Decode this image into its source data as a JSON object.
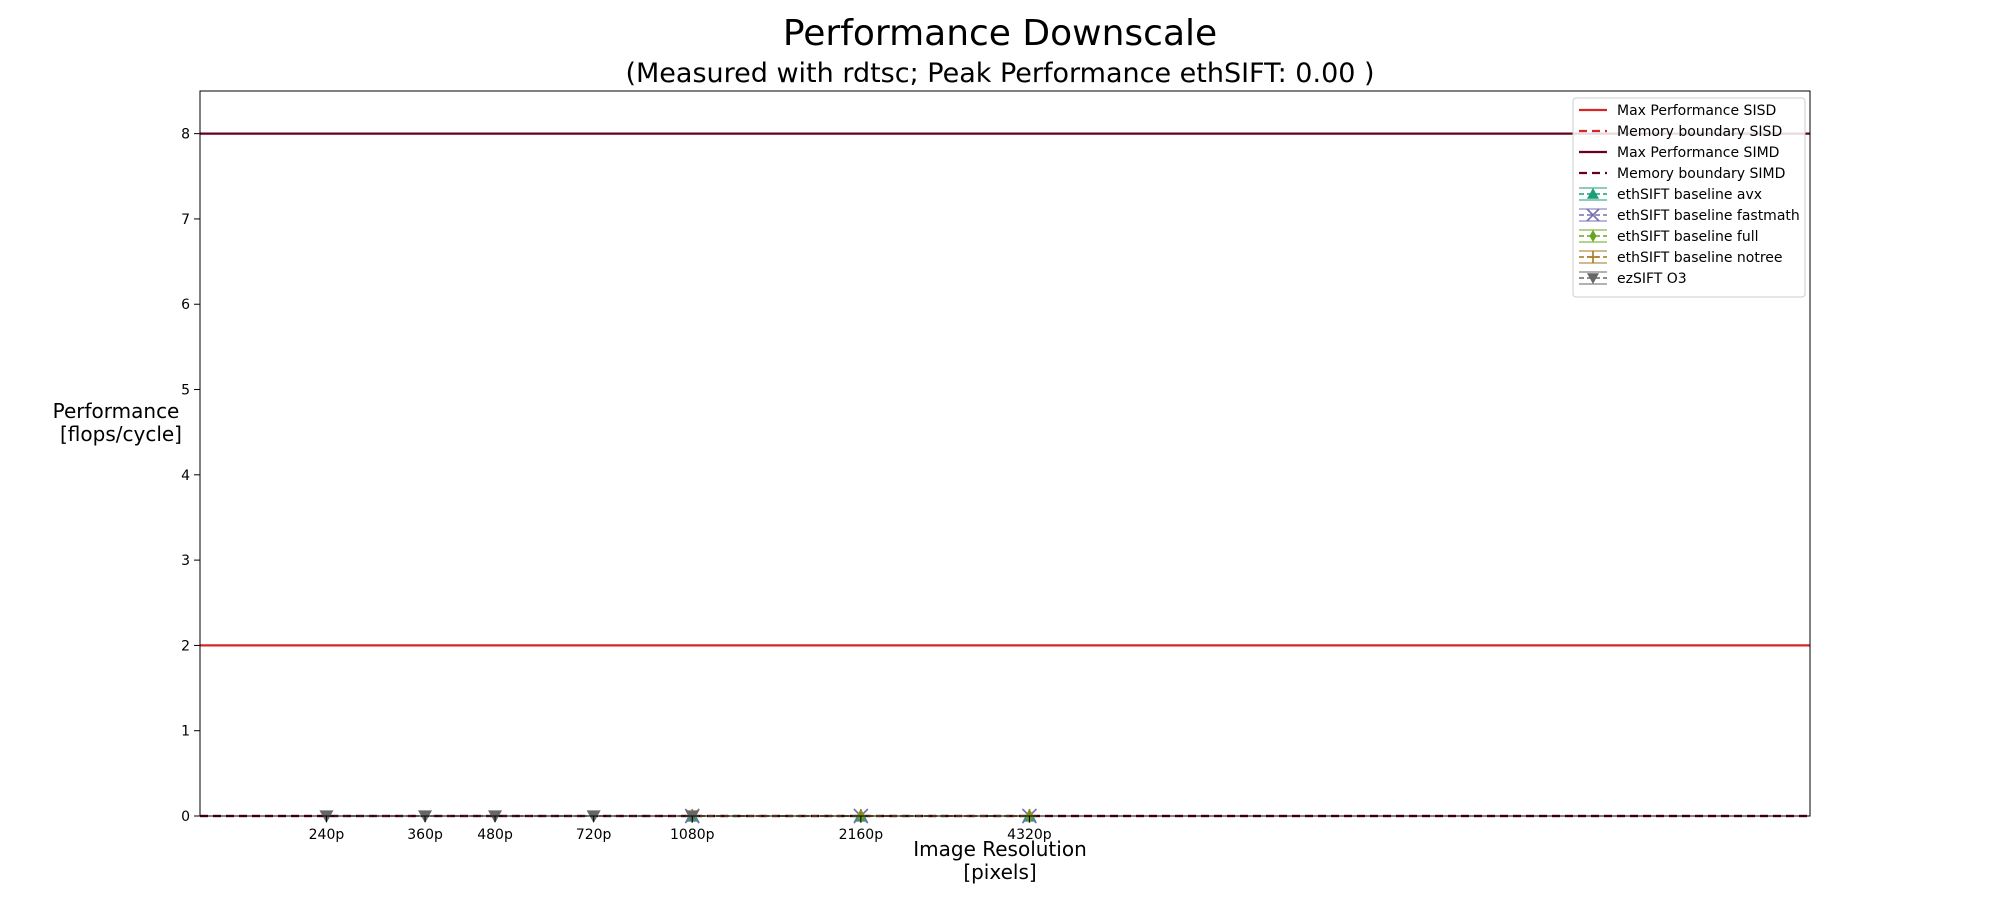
{
  "chart_data": {
    "type": "line",
    "title": "Performance Downscale",
    "subtitle": "(Measured with rdtsc; Peak Performance ethSIFT: 0.00 )",
    "xlabel": [
      "Image Resolution",
      "[pixels]"
    ],
    "ylabel": [
      "Performance",
      "[flops/cycle]"
    ],
    "x_categories": [
      "240p",
      "360p",
      "480p",
      "720p",
      "1080p",
      "2160p",
      "4320p"
    ],
    "x_values": [
      240,
      360,
      480,
      720,
      1080,
      2160,
      4320
    ],
    "xlim": [
      0.25,
      9.8
    ],
    "ylim": [
      0,
      8.5
    ],
    "y_ticks": [
      0,
      1,
      2,
      3,
      4,
      5,
      6,
      7,
      8
    ],
    "grid": false,
    "legend_position": "top-right",
    "hlines": [
      {
        "name": "Max Performance SISD",
        "y": 2,
        "color": "#d62728",
        "style": "solid"
      },
      {
        "name": "Memory boundary SISD",
        "y": 0,
        "color": "#d62728",
        "style": "dashed"
      },
      {
        "name": "Max Performance SIMD",
        "y": 8,
        "color": "#67001f",
        "style": "solid"
      },
      {
        "name": "Memory boundary SIMD",
        "y": 0,
        "color": "#67001f",
        "style": "dashed"
      }
    ],
    "series": [
      {
        "name": "ethSIFT baseline avx",
        "color": "#1b9e77",
        "marker": "triangle-up",
        "x": [
          "1080p",
          "2160p",
          "4320p"
        ],
        "y": [
          0.0,
          0.0,
          0.0
        ]
      },
      {
        "name": "ethSIFT baseline fastmath",
        "color": "#7570b3",
        "marker": "x",
        "x": [
          "1080p",
          "2160p",
          "4320p"
        ],
        "y": [
          0.0,
          0.0,
          0.0
        ]
      },
      {
        "name": "ethSIFT baseline full",
        "color": "#66a61e",
        "marker": "diamond",
        "x": [
          "1080p",
          "2160p",
          "4320p"
        ],
        "y": [
          0.0,
          0.0,
          0.0
        ]
      },
      {
        "name": "ethSIFT baseline notree",
        "color": "#a6761d",
        "marker": "plus",
        "x": [
          "1080p",
          "2160p",
          "4320p"
        ],
        "y": [
          0.0,
          0.0,
          0.0
        ]
      },
      {
        "name": "ezSIFT O3",
        "color": "#666666",
        "marker": "triangle-down",
        "x": [
          "240p",
          "360p",
          "480p",
          "720p",
          "1080p"
        ],
        "y": [
          0.0,
          0.0,
          0.0,
          0.0,
          0.0
        ]
      }
    ]
  }
}
